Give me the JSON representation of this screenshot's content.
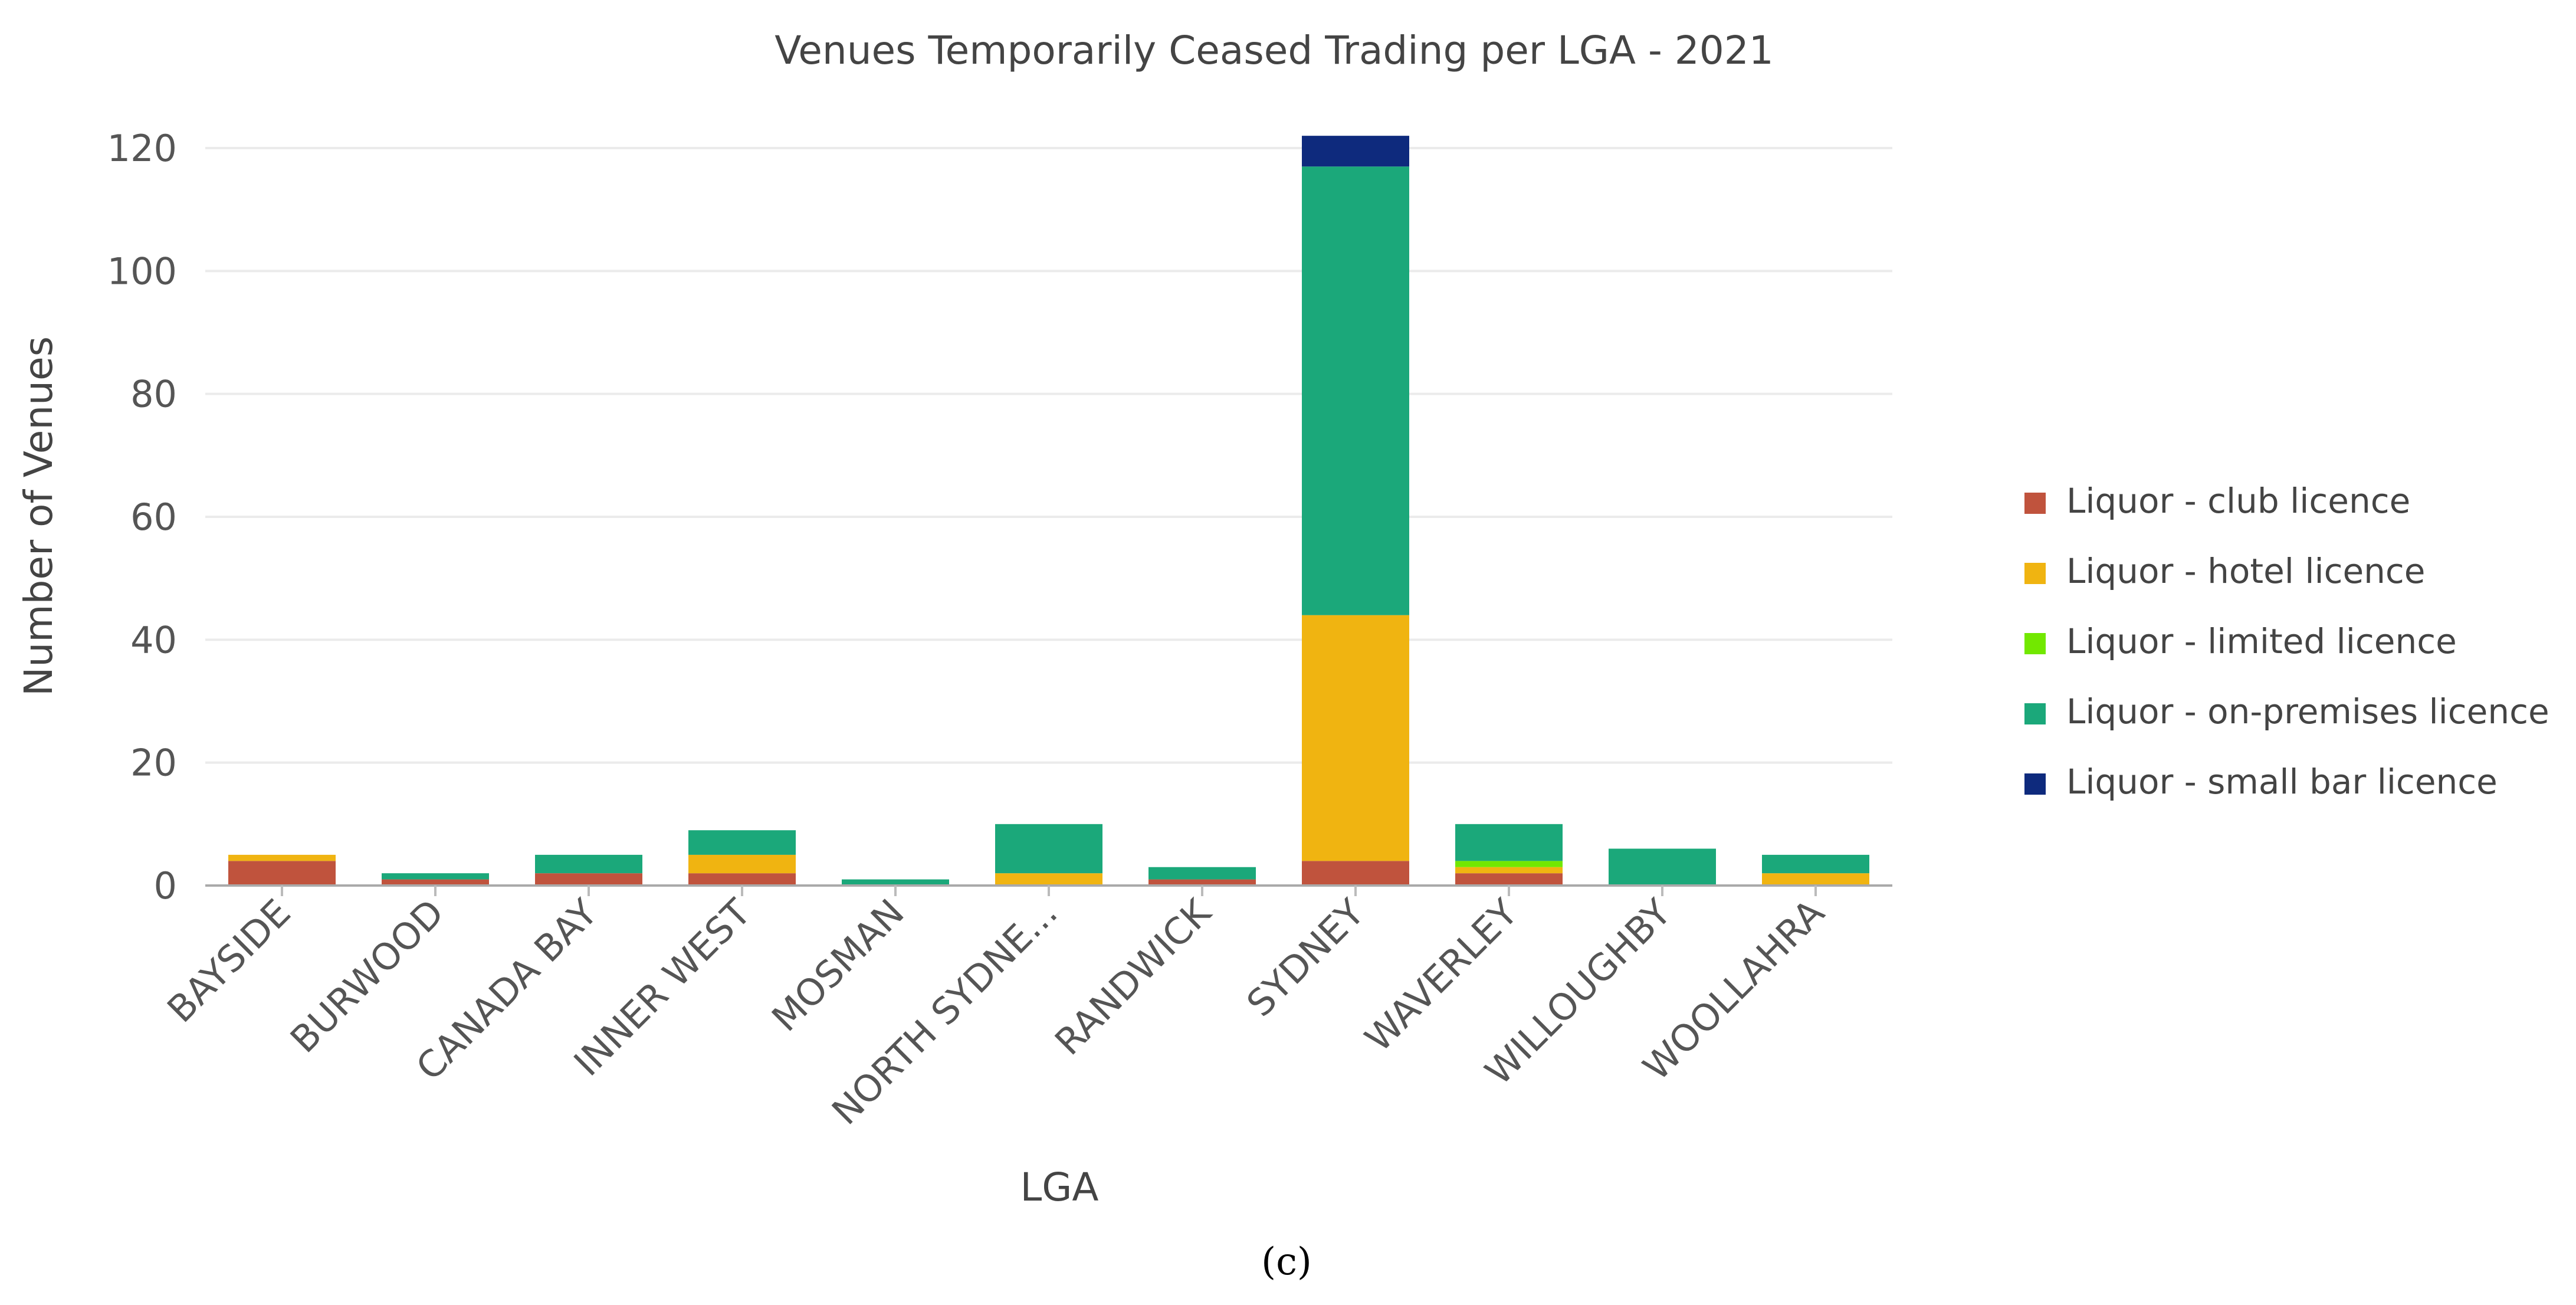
{
  "caption": "(c)",
  "chart_data": {
    "type": "bar",
    "stacked": true,
    "title": "Venues Temporarily Ceased Trading per LGA - 2021",
    "xlabel": "LGA",
    "ylabel": "Number of Venues",
    "ylim": [
      0,
      120
    ],
    "yticks": [
      0,
      20,
      40,
      60,
      80,
      100,
      120
    ],
    "grid": true,
    "legend_position": "right",
    "categories": [
      "BAYSIDE",
      "BURWOOD",
      "CANADA BAY",
      "INNER WEST",
      "MOSMAN",
      "NORTH SYDNE...",
      "RANDWICK",
      "SYDNEY",
      "WAVERLEY",
      "WILLOUGHBY",
      "WOOLLAHRA"
    ],
    "series": [
      {
        "name": "Liquor - club licence",
        "color": "#C0533D",
        "values": [
          4,
          1,
          2,
          2,
          0,
          0,
          1,
          4,
          2,
          0,
          0
        ]
      },
      {
        "name": "Liquor - hotel licence",
        "color": "#F0B411",
        "values": [
          1,
          0,
          0,
          3,
          0,
          2,
          0,
          40,
          1,
          0,
          2
        ]
      },
      {
        "name": "Liquor - limited licence",
        "color": "#72E800",
        "values": [
          0,
          0,
          0,
          0,
          0,
          0,
          0,
          0,
          1,
          0,
          0
        ]
      },
      {
        "name": "Liquor - on-premises licence",
        "color": "#1BA87A",
        "values": [
          0,
          1,
          3,
          4,
          1,
          8,
          2,
          73,
          6,
          6,
          3
        ]
      },
      {
        "name": "Liquor - small bar licence",
        "color": "#0E2A7D",
        "values": [
          0,
          0,
          0,
          0,
          0,
          0,
          0,
          5,
          0,
          0,
          0
        ]
      }
    ]
  }
}
